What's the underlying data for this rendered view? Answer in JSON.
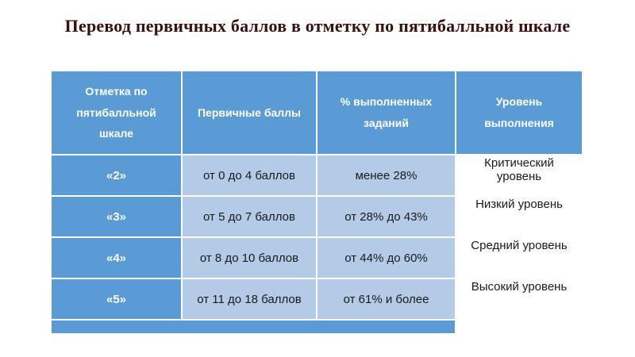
{
  "slide": {
    "title": "Перевод первичных баллов в отметку по пятибалльной шкале"
  },
  "table": {
    "headers": [
      "Отметка по пятибалльной шкале",
      "Первичные баллы",
      "% выполненных заданий",
      "Уровень выполнения"
    ],
    "rows": [
      {
        "mark": "«2»",
        "points": "от 0 до 4 баллов",
        "percent": "менее 28%",
        "level": "Критический уровень"
      },
      {
        "mark": "«3»",
        "points": "от 5 до 7 баллов",
        "percent": "от 28% до 43%",
        "level": "Низкий уровень"
      },
      {
        "mark": "«4»",
        "points": "от 8 до 10 баллов",
        "percent": "от 44% до 60%",
        "level": "Средний уровень"
      },
      {
        "mark": "«5»",
        "points": "от 11 до 18 баллов",
        "percent": "от 61% и более",
        "level": "Высокий уровень"
      }
    ],
    "colors": {
      "header_bg": "#5b9bd5",
      "light_cell_bg": "#b3cbe6",
      "level_cell_bg": "#ffffff",
      "header_text": "#ffffff",
      "body_text": "#1a1a1a",
      "title_text": "#3a0f0f"
    }
  }
}
